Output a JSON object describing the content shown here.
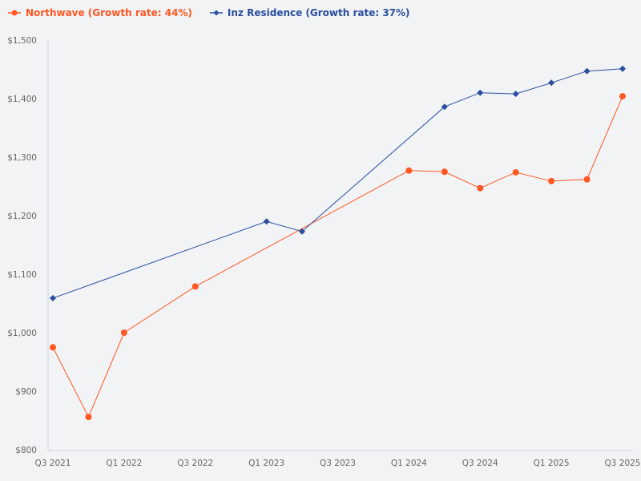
{
  "chart_data": {
    "type": "line",
    "categories": [
      "Q3 2021",
      "Q4 2021",
      "Q1 2022",
      "Q2 2022",
      "Q3 2022",
      "Q4 2022",
      "Q1 2023",
      "Q2 2023",
      "Q3 2023",
      "Q4 2023",
      "Q1 2024",
      "Q2 2024",
      "Q3 2024",
      "Q4 2024",
      "Q1 2025",
      "Q2 2025",
      "Q3 2025"
    ],
    "x_tick_labels": [
      "Q3 2021",
      "Q1 2022",
      "Q3 2022",
      "Q1 2023",
      "Q3 2023",
      "Q1 2024",
      "Q3 2024",
      "Q1 2025",
      "Q3 2025"
    ],
    "y_tick_labels": [
      "$800",
      "$900",
      "$1,000",
      "$1,100",
      "$1,200",
      "$1,300",
      "$1,400",
      "$1,500"
    ],
    "ylim": [
      800,
      1500
    ],
    "grid": false,
    "legend_position": "top-left",
    "series": [
      {
        "name": "Northwave (Growth rate: 44%)",
        "color": "#ff5722",
        "marker": "circle",
        "values": [
          975,
          856,
          1000,
          null,
          1079,
          null,
          null,
          null,
          null,
          null,
          1277,
          1275,
          1247,
          1274,
          1259,
          1262,
          1404
        ]
      },
      {
        "name": "Inz Residence (Growth rate: 37%)",
        "color": "#2a4e9e",
        "marker": "diamond",
        "values": [
          1059,
          null,
          null,
          null,
          null,
          null,
          1190,
          1173,
          null,
          null,
          null,
          1386,
          1410,
          1408,
          1427,
          1447,
          1451
        ]
      }
    ]
  }
}
